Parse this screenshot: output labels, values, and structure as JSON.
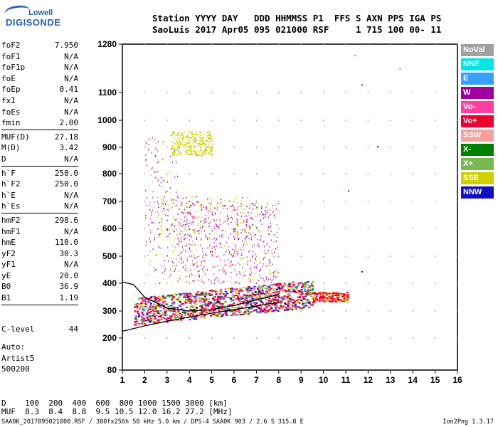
{
  "logo": {
    "line1": "Lowell",
    "line2": "DIGISONDE"
  },
  "header": {
    "row1": "Station YYYY DAY   DDD HHMMSS P1  FFS S AXN PPS IGA PS",
    "row2": "SaoLuis 2017 Apr05 095 021000 RSF     1 715 100 00- 11"
  },
  "params": [
    {
      "key": "foF2",
      "val": "7.950"
    },
    {
      "key": "foF1",
      "val": "N/A"
    },
    {
      "key": "foF1p",
      "val": "N/A"
    },
    {
      "key": "foE",
      "val": "N/A"
    },
    {
      "key": "foEp",
      "val": "0.41"
    },
    {
      "key": "fxI",
      "val": "N/A"
    },
    {
      "key": "foEs",
      "val": "N/A"
    },
    {
      "key": "fmin",
      "val": "2.00"
    },
    {
      "key": "MUF(D)",
      "val": "27.18"
    },
    {
      "key": "M(D)",
      "val": "3.42"
    },
    {
      "key": "D",
      "val": "N/A"
    },
    {
      "key": "h`F",
      "val": "250.0"
    },
    {
      "key": "h`F2",
      "val": "250.0"
    },
    {
      "key": "h`E",
      "val": "N/A"
    },
    {
      "key": "h`Es",
      "val": "N/A"
    },
    {
      "key": "hmF2",
      "val": "298.6"
    },
    {
      "key": "hmF1",
      "val": "N/A"
    },
    {
      "key": "hmE",
      "val": "110.0"
    },
    {
      "key": "yF2",
      "val": "30.3"
    },
    {
      "key": "yF1",
      "val": "N/A"
    },
    {
      "key": "yE",
      "val": "20.0"
    },
    {
      "key": "B0",
      "val": "36.9"
    },
    {
      "key": "B1",
      "val": "1.19"
    }
  ],
  "c_level": {
    "key": "C-level",
    "val": "44"
  },
  "auto": {
    "line1": "Auto:",
    "line2": "Artist5",
    "line3": "500200"
  },
  "legend": [
    {
      "label": "NoVal",
      "color": "#a0a0a0"
    },
    {
      "label": "NNE",
      "color": "#00e5e5"
    },
    {
      "label": "E",
      "color": "#3aa0ff"
    },
    {
      "label": "W",
      "color": "#a000a0"
    },
    {
      "label": "Vo-",
      "color": "#ff3fa0"
    },
    {
      "label": "Vo+",
      "color": "#ee0030"
    },
    {
      "label": "SSW",
      "color": "#f5a0a0"
    },
    {
      "label": "X-",
      "color": "#008000"
    },
    {
      "label": "X+",
      "color": "#78b850"
    },
    {
      "label": "SSE",
      "color": "#d0d000"
    },
    {
      "label": "NNW",
      "color": "#1010c0"
    }
  ],
  "muf_table": {
    "d_row": "D    100  200  400  600  800 1000 1500 3000 [km]",
    "muf_row": "MUF  8.3  8.4  8.8  9.5 10.5 12.0 16.2 27.2 [MHz]"
  },
  "footer": {
    "left": "SAA0K_2017095021000.RSF / 300fx256h 50 kHz 5.0 km / DPS-4 SAA0K 903 / 2.6 S 315.8 E",
    "right": "Ion2Png 1.3.17"
  },
  "chart_data": {
    "type": "scatter",
    "xlim": [
      1,
      16
    ],
    "ylim": [
      80,
      1280
    ],
    "x_ticks": [
      1,
      2,
      3,
      4,
      5,
      6,
      7,
      8,
      9,
      10,
      11,
      12,
      13,
      14,
      15,
      16
    ],
    "y_ticks": [
      80,
      200,
      300,
      400,
      500,
      600,
      700,
      800,
      900,
      1000,
      1100,
      1280
    ],
    "grid": true,
    "y_scale": "custom-ionogram",
    "legend_position": "right",
    "series": [
      {
        "name": "Vo+",
        "color": "#ee0030",
        "trace": "F-layer trace, 1.5-11 MHz, ~270-400 km"
      },
      {
        "name": "SSE",
        "color": "#d0d000",
        "trace": "scattered echoes 2-7 MHz, 500-980 km"
      }
    ],
    "profile_curve": {
      "x": [
        1,
        2,
        3,
        4,
        5,
        6,
        7,
        7.5,
        8
      ],
      "y": [
        225,
        245,
        262,
        278,
        292,
        305,
        318,
        325,
        330
      ]
    },
    "upper_curve": {
      "x": [
        1,
        1.5,
        2,
        3,
        4,
        5,
        6,
        7,
        8
      ],
      "y": [
        405,
        395,
        350,
        310,
        300,
        305,
        320,
        340,
        360
      ]
    },
    "isolated_points": [
      {
        "x": 11.4,
        "y": 1240,
        "color": "#3aa0ff"
      },
      {
        "x": 11.7,
        "y": 1130,
        "color": "#008000"
      },
      {
        "x": 13.4,
        "y": 1190,
        "color": "#78b850"
      },
      {
        "x": 12.4,
        "y": 905,
        "color": "#1010c0"
      },
      {
        "x": 11.1,
        "y": 740,
        "color": "#a000a0"
      },
      {
        "x": 11.7,
        "y": 445,
        "color": "#1010c0"
      },
      {
        "x": 2.45,
        "y": 870,
        "color": "#008000"
      }
    ]
  }
}
